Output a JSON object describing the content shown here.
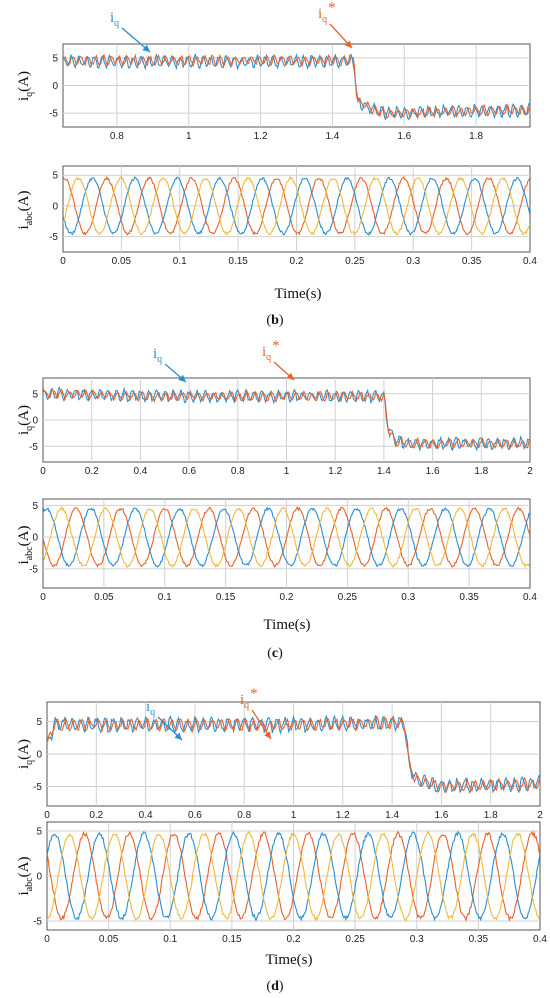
{
  "colors": {
    "iq": "#2a8fd0",
    "iq_ref": "#e8622b",
    "phase_a": "#e8622b",
    "phase_b": "#2a8fd0",
    "phase_c": "#f0b93a",
    "grid": "#d0d0d0",
    "axis": "#555555"
  },
  "labels": {
    "iq_main": "i",
    "iq_sub": "q",
    "iq_unit": "(A)",
    "iabc_main": "i",
    "iabc_sub": "abc",
    "iabc_unit": "(A)",
    "time_title": "Time(s)",
    "annot_iq_main": "i",
    "annot_iq_sub": "q",
    "annot_iqref_main": "i",
    "annot_iqref_sub": "q",
    "annot_iqref_star": "*"
  },
  "panels": [
    {
      "label": "(b)",
      "iq_xticks": [
        "0.8",
        "1",
        "1.2",
        "1.4",
        "1.6",
        "1.8"
      ],
      "iq_yticks": [
        "5",
        "0",
        "-5"
      ],
      "abc_xticks": [
        "0",
        "0.05",
        "0.1",
        "0.15",
        "0.2",
        "0.25",
        "0.3",
        "0.35",
        "0.4"
      ],
      "abc_yticks": [
        "5",
        "0",
        "-5"
      ]
    },
    {
      "label": "(c)",
      "iq_xticks": [
        "0",
        "0.2",
        "0.4",
        "0.6",
        "0.8",
        "1",
        "1.2",
        "1.4",
        "1.6",
        "1.8",
        "2"
      ],
      "iq_yticks": [
        "5",
        "0",
        "-5"
      ],
      "abc_xticks": [
        "0",
        "0.05",
        "0.1",
        "0.15",
        "0.2",
        "0.25",
        "0.3",
        "0.35",
        "0.4"
      ],
      "abc_yticks": [
        "5",
        "0",
        "-5"
      ]
    },
    {
      "label": "(d)",
      "iq_xticks": [
        "0",
        "0.2",
        "0.4",
        "0.6",
        "0.8",
        "1",
        "1.2",
        "1.4",
        "1.6",
        "1.8",
        "2"
      ],
      "iq_yticks": [
        "5",
        "0",
        "-5"
      ],
      "abc_xticks": [
        "0",
        "0.05",
        "0.1",
        "0.15",
        "0.2",
        "0.25",
        "0.3",
        "0.35",
        "0.4"
      ],
      "abc_yticks": [
        "5",
        "0",
        "-5"
      ]
    }
  ],
  "chart_data": [
    {
      "type": "line",
      "panel": "(b)",
      "xlim": [
        0.65,
        1.95
      ],
      "ylim": [
        -7.5,
        7.5
      ],
      "grid": true,
      "x": [
        0.65,
        0.8,
        1.0,
        1.2,
        1.4,
        1.46,
        1.47,
        1.5,
        1.55,
        1.6,
        1.8,
        1.95
      ],
      "series": [
        {
          "values": [
            4.5,
            4.5,
            4.5,
            4.5,
            4.5,
            4.5,
            -3,
            -4,
            -5,
            -5,
            -4.5,
            -4.5
          ]
        },
        {
          "values": [
            4.3,
            4.3,
            4.3,
            4.3,
            4.3,
            4.5,
            -3,
            -4,
            -5,
            -5,
            -4.5,
            -4.5
          ]
        }
      ]
    },
    {
      "type": "line",
      "panel": "(b)",
      "xlim": [
        0,
        0.4
      ],
      "ylim": [
        -7.5,
        6.5
      ],
      "grid": true,
      "phase_amplitude": 4.5,
      "frequency_hz": 27.5,
      "series": [
        {
          "phase_deg": 80
        },
        {
          "phase_deg": 200
        },
        {
          "phase_deg": -40
        }
      ]
    },
    {
      "type": "line",
      "panel": "(c)",
      "xlim": [
        0,
        2
      ],
      "ylim": [
        -8,
        8
      ],
      "grid": true,
      "x": [
        0,
        0.5,
        1.0,
        1.4,
        1.42,
        1.45,
        1.5,
        2.0
      ],
      "series": [
        {
          "values": [
            5,
            4.5,
            4.5,
            4.5,
            -2,
            -4,
            -4.5,
            -4.5
          ]
        },
        {
          "values": [
            5,
            4.5,
            4.5,
            4.5,
            -2,
            -4,
            -4.5,
            -4.5
          ]
        }
      ]
    },
    {
      "type": "line",
      "panel": "(c)",
      "xlim": [
        0,
        0.4
      ],
      "ylim": [
        -8,
        6
      ],
      "grid": true,
      "phase_amplitude": 4.5,
      "frequency_hz": 27.5,
      "series": [
        {
          "phase_deg": 180
        },
        {
          "phase_deg": 60
        },
        {
          "phase_deg": -60
        }
      ]
    },
    {
      "type": "line",
      "panel": "(d)",
      "xlim": [
        0,
        2
      ],
      "ylim": [
        -8,
        8
      ],
      "grid": true,
      "x": [
        0,
        0.03,
        0.1,
        0.5,
        1.0,
        1.45,
        1.47,
        1.5,
        1.6,
        2.0
      ],
      "series": [
        {
          "values": [
            1.5,
            4.5,
            4.5,
            4.5,
            4.5,
            4.8,
            -2,
            -4,
            -5,
            -4.5
          ]
        },
        {
          "values": [
            1.5,
            4.5,
            4.5,
            4.5,
            4.5,
            4.8,
            -2,
            -4,
            -5,
            -4.5
          ]
        }
      ]
    },
    {
      "type": "line",
      "panel": "(d)",
      "xlim": [
        0,
        0.4
      ],
      "ylim": [
        -6,
        6
      ],
      "grid": true,
      "phase_amplitude": 4.7,
      "frequency_hz": 27.5,
      "series": [
        {
          "phase_deg": 150
        },
        {
          "phase_deg": 30
        },
        {
          "phase_deg": -90
        }
      ]
    }
  ]
}
